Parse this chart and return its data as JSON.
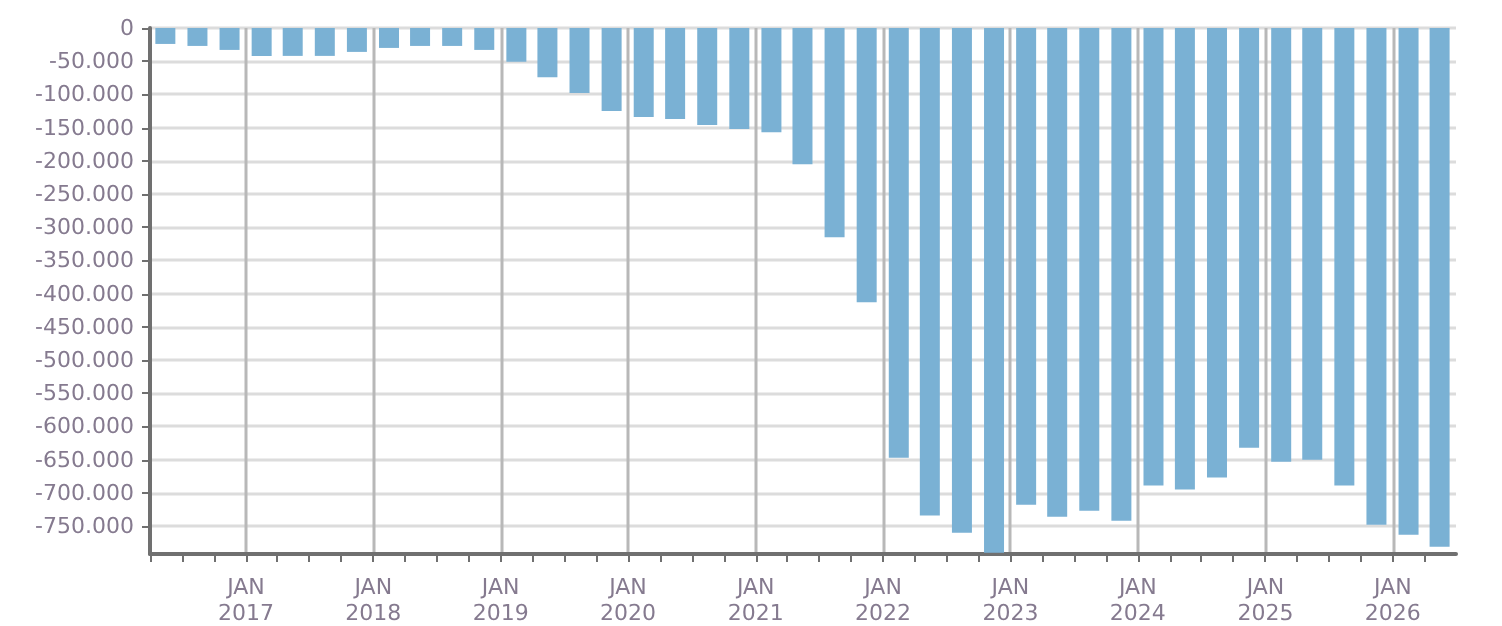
{
  "chart_data": {
    "type": "bar",
    "x": [
      "2016-05-15",
      "2016-08-15",
      "2016-11-15",
      "2017-02-15",
      "2017-05-15",
      "2017-08-15",
      "2017-11-15",
      "2018-02-15",
      "2018-05-15",
      "2018-08-15",
      "2018-11-15",
      "2019-02-15",
      "2019-05-15",
      "2019-08-15",
      "2019-11-15",
      "2020-02-15",
      "2020-05-15",
      "2020-08-15",
      "2020-11-15",
      "2021-02-15",
      "2021-05-15",
      "2021-08-15",
      "2021-11-15",
      "2022-02-15",
      "2022-05-15",
      "2022-08-15",
      "2022-11-15",
      "2023-02-15",
      "2023-05-15",
      "2023-08-15",
      "2023-11-15",
      "2024-02-15",
      "2024-05-15",
      "2024-08-15",
      "2024-11-15",
      "2025-02-15",
      "2025-05-15",
      "2025-08-15",
      "2025-11-15",
      "2026-02-15",
      "2026-05-15"
    ],
    "values": [
      -24000,
      -27000,
      -33000,
      -42000,
      -42000,
      -42000,
      -36000,
      -30000,
      -27000,
      -27000,
      -33000,
      -51000,
      -74000,
      -98000,
      -125000,
      -134000,
      -137000,
      -146000,
      -152000,
      -157000,
      -205000,
      -315000,
      -413000,
      -647000,
      -734000,
      -760000,
      -790000,
      -718000,
      -736000,
      -727000,
      -742000,
      -689000,
      -695000,
      -677000,
      -632000,
      -653000,
      -650000,
      -689000,
      -748000,
      -763000,
      -781000
    ],
    "color": "#7ab1d4",
    "xlim": [
      "2016-04-01",
      "2026-07-01"
    ],
    "xticks": [
      {
        "value": "2016-04-01",
        "label": null
      },
      {
        "value": "2016-07-01",
        "label": null
      },
      {
        "value": "2016-10-01",
        "label": null
      },
      {
        "value": "2017-01-01",
        "label": "JAN 2017"
      },
      {
        "value": "2017-04-01",
        "label": null
      },
      {
        "value": "2017-07-01",
        "label": null
      },
      {
        "value": "2017-10-01",
        "label": null
      },
      {
        "value": "2018-01-01",
        "label": "JAN 2018"
      },
      {
        "value": "2018-04-01",
        "label": null
      },
      {
        "value": "2018-07-01",
        "label": null
      },
      {
        "value": "2018-10-01",
        "label": null
      },
      {
        "value": "2019-01-01",
        "label": "JAN 2019"
      },
      {
        "value": "2019-04-01",
        "label": null
      },
      {
        "value": "2019-07-01",
        "label": null
      },
      {
        "value": "2019-10-01",
        "label": null
      },
      {
        "value": "2020-01-01",
        "label": "JAN 2020"
      },
      {
        "value": "2020-04-01",
        "label": null
      },
      {
        "value": "2020-07-01",
        "label": null
      },
      {
        "value": "2020-10-01",
        "label": null
      },
      {
        "value": "2021-01-01",
        "label": "JAN 2021"
      },
      {
        "value": "2021-04-01",
        "label": null
      },
      {
        "value": "2021-07-01",
        "label": null
      },
      {
        "value": "2021-10-01",
        "label": null
      },
      {
        "value": "2022-01-01",
        "label": "JAN 2022"
      },
      {
        "value": "2022-04-01",
        "label": null
      },
      {
        "value": "2022-07-01",
        "label": null
      },
      {
        "value": "2022-10-01",
        "label": null
      },
      {
        "value": "2023-01-01",
        "label": "JAN 2023"
      },
      {
        "value": "2023-04-01",
        "label": null
      },
      {
        "value": "2023-07-01",
        "label": null
      },
      {
        "value": "2023-10-01",
        "label": null
      },
      {
        "value": "2024-01-01",
        "label": "JAN 2024"
      },
      {
        "value": "2024-04-01",
        "label": null
      },
      {
        "value": "2024-07-01",
        "label": null
      },
      {
        "value": "2024-10-01",
        "label": null
      },
      {
        "value": "2025-01-01",
        "label": "JAN 2025"
      },
      {
        "value": "2025-04-01",
        "label": null
      },
      {
        "value": "2025-07-01",
        "label": null
      },
      {
        "value": "2025-10-01",
        "label": null
      },
      {
        "value": "2026-01-01",
        "label": "JAN 2026"
      },
      {
        "value": "2026-04-01",
        "label": null
      }
    ],
    "ylim": [
      -792000,
      0
    ],
    "yticks": [
      {
        "value": 0,
        "label": "0"
      },
      {
        "value": -50000,
        "label": "-50.000"
      },
      {
        "value": -100000,
        "label": "-100.000"
      },
      {
        "value": -150000,
        "label": "-150.000"
      },
      {
        "value": -200000,
        "label": "-200.000"
      },
      {
        "value": -250000,
        "label": "-250.000"
      },
      {
        "value": -300000,
        "label": "-300.000"
      },
      {
        "value": -350000,
        "label": "-350.000"
      },
      {
        "value": -400000,
        "label": "-400.000"
      },
      {
        "value": -450000,
        "label": "-450.000"
      },
      {
        "value": -500000,
        "label": "-500.000"
      },
      {
        "value": -550000,
        "label": "-550.000"
      },
      {
        "value": -600000,
        "label": "-600.000"
      },
      {
        "value": -650000,
        "label": "-650.000"
      },
      {
        "value": -700000,
        "label": "-700.000"
      },
      {
        "value": -750000,
        "label": "-750.000"
      }
    ],
    "grid": true
  }
}
